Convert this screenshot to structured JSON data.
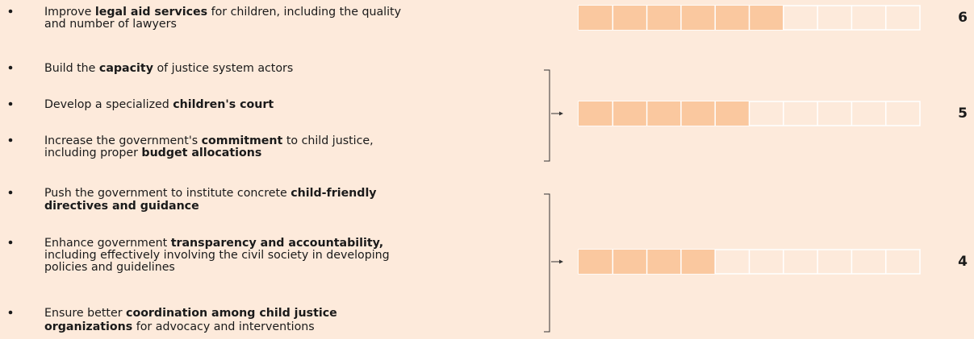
{
  "chart_data": {
    "type": "segmented-bar",
    "xlim": [
      0,
      10
    ],
    "color": "#fac89f",
    "groups": [
      {
        "value": 6,
        "items": [
          [
            [
              {
                "text": "Improve ",
                "bold": false
              },
              {
                "text": "legal aid services",
                "bold": true
              },
              {
                "text": " for children, including the quality",
                "bold": false
              }
            ],
            [
              {
                "text": "and number of lawyers",
                "bold": false
              }
            ]
          ]
        ]
      },
      {
        "value": 5,
        "items": [
          [
            [
              {
                "text": "Build the ",
                "bold": false
              },
              {
                "text": "capacity",
                "bold": true
              },
              {
                "text": " of justice system actors",
                "bold": false
              }
            ]
          ],
          [
            [
              {
                "text": "Develop a specialized ",
                "bold": false
              },
              {
                "text": "children's court",
                "bold": true
              }
            ]
          ],
          [
            [
              {
                "text": "Increase the government's ",
                "bold": false
              },
              {
                "text": "commitment",
                "bold": true
              },
              {
                "text": " to child justice,",
                "bold": false
              }
            ],
            [
              {
                "text": "including proper ",
                "bold": false
              },
              {
                "text": "budget allocations",
                "bold": true
              }
            ]
          ]
        ]
      },
      {
        "value": 4,
        "items": [
          [
            [
              {
                "text": "Push the government to institute concrete ",
                "bold": false
              },
              {
                "text": "child-friendly",
                "bold": true
              }
            ],
            [
              {
                "text": "directives and guidance",
                "bold": true
              }
            ]
          ],
          [
            [
              {
                "text": "Enhance government ",
                "bold": false
              },
              {
                "text": "transparency and accountability,",
                "bold": true
              }
            ],
            [
              {
                "text": "including effectively involving the civil society in developing",
                "bold": false
              }
            ],
            [
              {
                "text": "policies and guidelines",
                "bold": false
              }
            ]
          ],
          [
            [
              {
                "text": "Ensure better ",
                "bold": false
              },
              {
                "text": "coordination among child justice",
                "bold": true
              }
            ],
            [
              {
                "text": "organizations",
                "bold": true
              },
              {
                "text": " for advocacy and interventions",
                "bold": false
              }
            ]
          ]
        ]
      }
    ]
  }
}
